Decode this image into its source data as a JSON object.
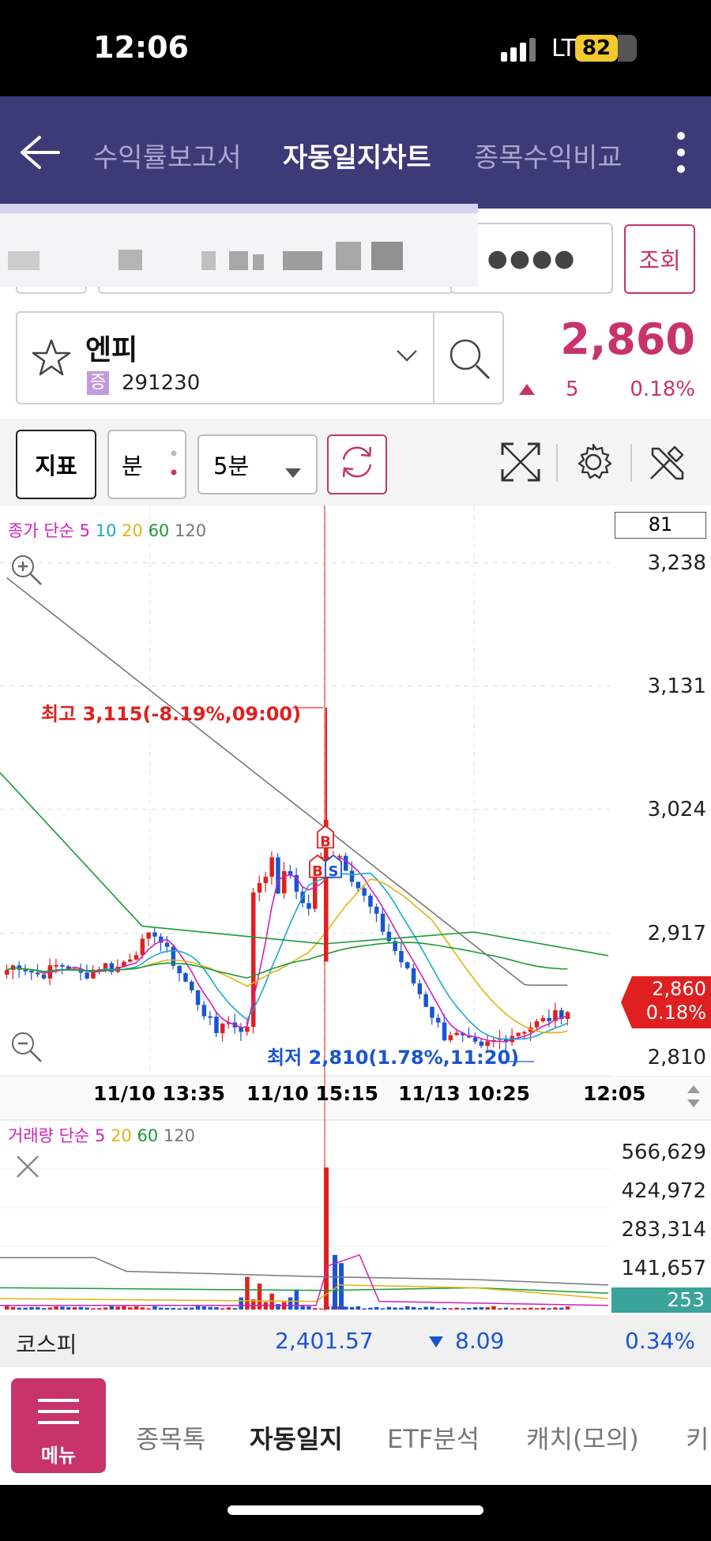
{
  "status_bar": {
    "time": "12:06",
    "network": "LTE",
    "battery": "82"
  },
  "nav": {
    "tabs": [
      {
        "label": "수익률보고서"
      },
      {
        "label": "자동일지차트"
      },
      {
        "label": "종목수익비교"
      }
    ],
    "active_index": 1
  },
  "account": {
    "query_button": "조회",
    "password_mask": "●●●●"
  },
  "stock": {
    "name": "엔피",
    "market_badge": "증",
    "code": "291230",
    "price": "2,860",
    "change": "5",
    "change_pct": "0.18%"
  },
  "toolbar": {
    "indicator_label": "지표",
    "period_unit": "분",
    "interval_value": "5분"
  },
  "price_chart": {
    "legend_prefix": "종가 단순",
    "ma_periods": [
      "5",
      "10",
      "20",
      "60",
      "120"
    ],
    "ma_colors": [
      "#d01fbf",
      "#19a9d0",
      "#e3b314",
      "#1a9a35",
      "#777777"
    ],
    "count_box": "81",
    "y_labels": [
      "3,238",
      "3,131",
      "3,024",
      "2,917",
      "2,810"
    ],
    "current_price_tag": "2,860",
    "current_pct_tag": "0.18%",
    "high_annotation": "최고 3,115(-8.19%,09:00)",
    "low_annotation": "최저 2,810(1.78%,11:20)",
    "x_labels": [
      "11/10 13:35",
      "11/10 15:15",
      "11/13 10:25",
      "12:05"
    ],
    "trade_markers": [
      "B",
      "B",
      "S"
    ]
  },
  "volume_chart": {
    "legend_prefix": "거래량 단순",
    "ma_periods": [
      "5",
      "20",
      "60",
      "120"
    ],
    "ma_colors": [
      "#d01fbf",
      "#e3b314",
      "#1a9a35",
      "#777777"
    ],
    "y_labels": [
      "566,629",
      "424,972",
      "283,314",
      "141,657"
    ],
    "current_volume": "253"
  },
  "chart_data": {
    "type": "candlestick",
    "title": "",
    "y_range": [
      2810,
      3238
    ],
    "high": 3115,
    "low": 2810,
    "current": 2860,
    "volume_range": [
      0,
      566629
    ]
  },
  "index_bar": {
    "name": "코스피",
    "value": "2,401.57",
    "change": "8.09",
    "change_pct": "0.34%"
  },
  "bottom_nav": {
    "menu_label": "메뉴",
    "items": [
      "종목톡",
      "자동일지",
      "ETF분석",
      "캐치(모의)",
      "키"
    ],
    "active_index": 1
  },
  "colors": {
    "nav_bg": "#3d3a78",
    "up": "#e02020",
    "down": "#1a55d0",
    "accent": "#c8336b"
  }
}
